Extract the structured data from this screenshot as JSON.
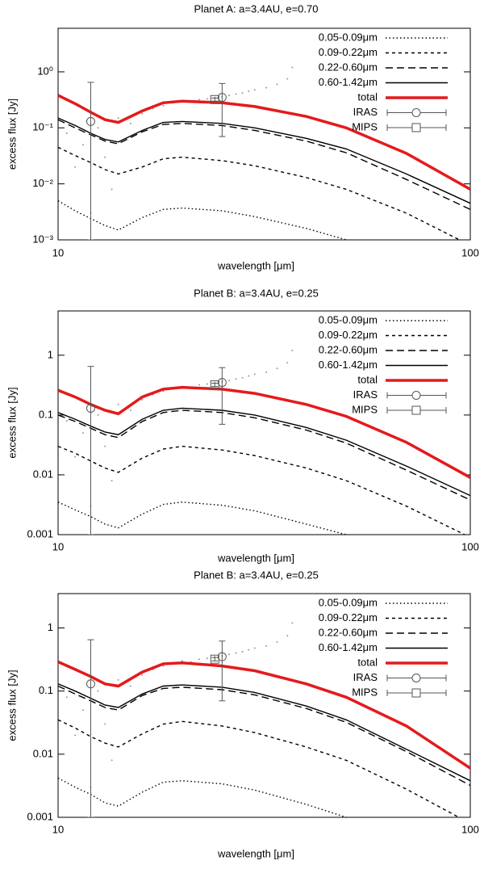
{
  "chart_data": [
    {
      "type": "line",
      "title": "Planet A: a=3.4AU, e=0.70",
      "x_label": "wavelength [μm]",
      "y_label": "excess flux [Jy]",
      "log_scale": "xy",
      "legend": "upper right",
      "xlim": [
        10,
        100
      ],
      "xticks": [
        10,
        100
      ],
      "ylim": [
        0.001,
        6
      ],
      "yticks": [
        {
          "value": 0.001,
          "label": "10⁻³"
        },
        {
          "value": 0.01,
          "label": "10⁻²"
        },
        {
          "value": 0.1,
          "label": "10⁻¹"
        },
        {
          "value": 1,
          "label": "10⁰"
        }
      ],
      "x": [
        10,
        11,
        12,
        13,
        14,
        16,
        18,
        20,
        25,
        30,
        40,
        50,
        70,
        100
      ],
      "series": [
        {
          "name": "0.05-0.09μm",
          "color": "#000000",
          "style": "dotted",
          "values": [
            0.005,
            0.0033,
            0.0024,
            0.0018,
            0.0015,
            0.0025,
            0.0035,
            0.0037,
            0.0033,
            0.0026,
            0.0016,
            0.001,
            0.0005,
            0.0002
          ]
        },
        {
          "name": "0.09-0.22μm",
          "color": "#000000",
          "style": "dashed",
          "values": [
            0.045,
            0.032,
            0.024,
            0.018,
            0.015,
            0.02,
            0.028,
            0.03,
            0.026,
            0.021,
            0.013,
            0.008,
            0.003,
            0.0008
          ]
        },
        {
          "name": "0.22-0.60μm",
          "color": "#000000",
          "style": "long-dashed",
          "values": [
            0.14,
            0.1,
            0.075,
            0.058,
            0.052,
            0.085,
            0.115,
            0.12,
            0.11,
            0.09,
            0.058,
            0.036,
            0.012,
            0.0035
          ]
        },
        {
          "name": "0.60-1.42μm",
          "color": "#000000",
          "style": "solid",
          "values": [
            0.15,
            0.11,
            0.08,
            0.062,
            0.056,
            0.09,
            0.125,
            0.13,
            0.12,
            0.1,
            0.065,
            0.042,
            0.015,
            0.0045
          ]
        },
        {
          "name": "total",
          "color": "#e41a1c",
          "style": "thick",
          "values": [
            0.38,
            0.27,
            0.19,
            0.14,
            0.125,
            0.2,
            0.28,
            0.3,
            0.28,
            0.24,
            0.16,
            0.1,
            0.035,
            0.008
          ]
        }
      ],
      "points": [
        {
          "name": "IRAS",
          "color": "#555555",
          "marker": "circle",
          "x": [
            12,
            25
          ],
          "values": [
            0.13,
            0.35
          ],
          "lower": [
            0.001,
            0.07
          ],
          "upper": [
            0.65,
            0.62
          ]
        },
        {
          "name": "MIPS",
          "color": "#555555",
          "marker": "square",
          "x": [
            24
          ],
          "values": [
            0.32
          ],
          "lower": [
            0.3
          ],
          "upper": [
            0.34
          ]
        }
      ],
      "scatter_points": {
        "color": "#999999",
        "x": [
          10.5,
          11,
          11.5,
          12,
          12.5,
          13,
          13.5,
          14,
          15,
          16,
          17,
          18,
          19,
          20,
          21,
          22,
          23,
          24,
          25,
          26,
          27,
          28,
          29,
          30,
          32,
          34,
          36,
          37
        ],
        "values": [
          0.08,
          0.02,
          0.05,
          0.003,
          0.1,
          0.03,
          0.008,
          0.15,
          0.12,
          0.18,
          0.22,
          0.25,
          0.28,
          0.3,
          0.29,
          0.32,
          0.33,
          0.35,
          0.36,
          0.38,
          0.4,
          0.42,
          0.45,
          0.48,
          0.52,
          0.6,
          0.75,
          1.2
        ]
      }
    },
    {
      "type": "line",
      "title": "Planet B: a=3.4AU, e=0.25",
      "x_label": "wavelength [μm]",
      "y_label": "excess flux [Jy]",
      "log_scale": "xy",
      "legend": "upper right",
      "xlim": [
        10,
        100
      ],
      "xticks": [
        10,
        100
      ],
      "ylim": [
        0.001,
        5.5
      ],
      "yticks": [
        0.001,
        0.01,
        0.1,
        1
      ],
      "x": [
        10,
        11,
        12,
        13,
        14,
        16,
        18,
        20,
        25,
        30,
        40,
        50,
        70,
        100
      ],
      "series": [
        {
          "name": "0.05-0.09μm",
          "color": "#000000",
          "style": "dotted",
          "values": [
            0.0035,
            0.0026,
            0.002,
            0.0015,
            0.0013,
            0.0022,
            0.0032,
            0.0035,
            0.0031,
            0.0025,
            0.0015,
            0.001,
            0.0005,
            0.0002
          ]
        },
        {
          "name": "0.09-0.22μm",
          "color": "#000000",
          "style": "dashed",
          "values": [
            0.03,
            0.023,
            0.017,
            0.013,
            0.011,
            0.019,
            0.027,
            0.03,
            0.026,
            0.021,
            0.013,
            0.008,
            0.003,
            0.0009
          ]
        },
        {
          "name": "0.22-0.60μm",
          "color": "#000000",
          "style": "long-dashed",
          "values": [
            0.1,
            0.078,
            0.06,
            0.047,
            0.042,
            0.078,
            0.11,
            0.12,
            0.11,
            0.09,
            0.056,
            0.034,
            0.012,
            0.0038
          ]
        },
        {
          "name": "0.60-1.42μm",
          "color": "#000000",
          "style": "solid",
          "values": [
            0.11,
            0.085,
            0.065,
            0.052,
            0.047,
            0.085,
            0.12,
            0.13,
            0.12,
            0.1,
            0.062,
            0.038,
            0.014,
            0.0045
          ]
        },
        {
          "name": "total",
          "color": "#e41a1c",
          "style": "thick",
          "values": [
            0.26,
            0.2,
            0.15,
            0.12,
            0.105,
            0.2,
            0.27,
            0.29,
            0.27,
            0.23,
            0.15,
            0.095,
            0.035,
            0.009
          ]
        }
      ],
      "points": [
        {
          "name": "IRAS",
          "color": "#555555",
          "marker": "circle",
          "x": [
            12,
            25
          ],
          "values": [
            0.13,
            0.35
          ],
          "lower": [
            0.001,
            0.07
          ],
          "upper": [
            0.65,
            0.62
          ]
        },
        {
          "name": "MIPS",
          "color": "#555555",
          "marker": "square",
          "x": [
            24
          ],
          "values": [
            0.32
          ],
          "lower": [
            0.3
          ],
          "upper": [
            0.34
          ]
        }
      ],
      "scatter_points": {
        "color": "#999999",
        "x": [
          10.5,
          11,
          11.5,
          12,
          12.5,
          13,
          13.5,
          14,
          15,
          16,
          17,
          18,
          19,
          20,
          21,
          22,
          23,
          24,
          25,
          26,
          27,
          28,
          29,
          30,
          32,
          34,
          36,
          37
        ],
        "values": [
          0.08,
          0.02,
          0.05,
          0.003,
          0.1,
          0.03,
          0.008,
          0.15,
          0.12,
          0.18,
          0.22,
          0.25,
          0.28,
          0.3,
          0.29,
          0.32,
          0.33,
          0.35,
          0.36,
          0.38,
          0.4,
          0.42,
          0.45,
          0.48,
          0.52,
          0.6,
          0.75,
          1.2
        ]
      }
    },
    {
      "type": "line",
      "title": "Planet B: a=3.4AU, e=0.25",
      "x_label": "wavelength [μm]",
      "y_label": "excess flux [Jy]",
      "log_scale": "xy",
      "legend": "upper right",
      "xlim": [
        10,
        100
      ],
      "xticks": [
        10,
        100
      ],
      "ylim": [
        0.001,
        3.5
      ],
      "yticks": [
        0.001,
        0.01,
        0.1,
        1
      ],
      "x": [
        10,
        11,
        12,
        13,
        14,
        16,
        18,
        20,
        25,
        30,
        40,
        50,
        70,
        100
      ],
      "series": [
        {
          "name": "0.05-0.09μm",
          "color": "#000000",
          "style": "dotted",
          "values": [
            0.0042,
            0.003,
            0.0023,
            0.0017,
            0.0015,
            0.0025,
            0.0036,
            0.0038,
            0.0034,
            0.0027,
            0.0016,
            0.001,
            0.0005,
            0.0002
          ]
        },
        {
          "name": "0.09-0.22μm",
          "color": "#000000",
          "style": "dashed",
          "values": [
            0.035,
            0.026,
            0.019,
            0.015,
            0.013,
            0.021,
            0.03,
            0.033,
            0.028,
            0.022,
            0.013,
            0.008,
            0.0028,
            0.0008
          ]
        },
        {
          "name": "0.22-0.60μm",
          "color": "#000000",
          "style": "long-dashed",
          "values": [
            0.12,
            0.09,
            0.07,
            0.055,
            0.05,
            0.085,
            0.11,
            0.115,
            0.105,
            0.087,
            0.053,
            0.032,
            0.011,
            0.0032
          ]
        },
        {
          "name": "0.60-1.42μm",
          "color": "#000000",
          "style": "solid",
          "values": [
            0.13,
            0.1,
            0.077,
            0.06,
            0.055,
            0.09,
            0.12,
            0.125,
            0.115,
            0.095,
            0.058,
            0.035,
            0.012,
            0.0038
          ]
        },
        {
          "name": "total",
          "color": "#e41a1c",
          "style": "thick",
          "values": [
            0.29,
            0.22,
            0.17,
            0.13,
            0.12,
            0.2,
            0.27,
            0.28,
            0.25,
            0.21,
            0.13,
            0.08,
            0.028,
            0.006
          ]
        }
      ],
      "points": [
        {
          "name": "IRAS",
          "color": "#555555",
          "marker": "circle",
          "x": [
            12,
            25
          ],
          "values": [
            0.13,
            0.35
          ],
          "lower": [
            0.001,
            0.07
          ],
          "upper": [
            0.65,
            0.62
          ]
        },
        {
          "name": "MIPS",
          "color": "#555555",
          "marker": "square",
          "x": [
            24
          ],
          "values": [
            0.32
          ],
          "lower": [
            0.3
          ],
          "upper": [
            0.34
          ]
        }
      ],
      "scatter_points": {
        "color": "#999999",
        "x": [
          10.5,
          11,
          11.5,
          12,
          12.5,
          13,
          13.5,
          14,
          15,
          16,
          17,
          18,
          19,
          20,
          21,
          22,
          23,
          24,
          25,
          26,
          27,
          28,
          29,
          30,
          32,
          34,
          36,
          37
        ],
        "values": [
          0.08,
          0.02,
          0.05,
          0.003,
          0.1,
          0.03,
          0.008,
          0.15,
          0.12,
          0.18,
          0.22,
          0.25,
          0.28,
          0.3,
          0.29,
          0.32,
          0.33,
          0.35,
          0.36,
          0.38,
          0.4,
          0.42,
          0.45,
          0.48,
          0.52,
          0.6,
          0.75,
          1.2
        ]
      }
    }
  ]
}
